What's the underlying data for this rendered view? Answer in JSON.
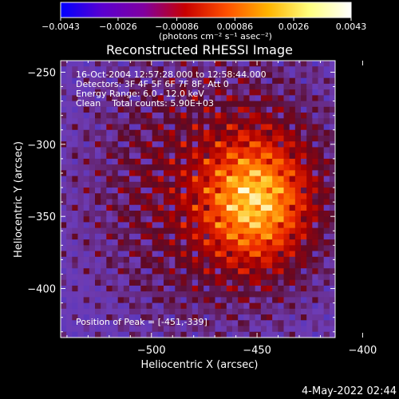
{
  "chart_data": {
    "type": "heatmap",
    "title": "Reconstructed RHESSI Image",
    "xlabel": "Heliocentric X (arcsec)",
    "ylabel": "Heliocentric Y (arcsec)",
    "xlim": [
      -543,
      -413
    ],
    "ylim": [
      -434,
      -242
    ],
    "xticks": [
      -500,
      -450,
      -400
    ],
    "xtick_labels": [
      "−500",
      "−450",
      "−400"
    ],
    "yticks": [
      -250,
      -300,
      -350,
      -400
    ],
    "ytick_labels": [
      "−250",
      "−300",
      "−350",
      "−400"
    ],
    "colorbar": {
      "range": [
        -0.0043,
        0.0043
      ],
      "ticks": [
        -0.0043,
        -0.0026,
        -0.00086,
        0.00086,
        0.0026,
        0.0043
      ],
      "tick_labels": [
        "−0.0043",
        "−0.0026",
        "−0.00086",
        "0.00086",
        "0.0026",
        "0.0043"
      ],
      "unit_label": "(photons cm⁻² s⁻¹ asec⁻²)",
      "colors": [
        "#0000ff",
        "#5a00d0",
        "#8000a0",
        "#c80000",
        "#ff5000",
        "#ffb400",
        "#ffff80",
        "#ffffff"
      ]
    },
    "annotations": {
      "line1": "16-Oct-2004 12:57:28.000 to 12:58:44.000",
      "line2": "Detectors: 3F 4F 5F 6F 7F 8F, Att 0",
      "line3": "Energy Range: 6.0 - 12.0 keV",
      "line4": "Clean    Total counts: 5.90E+03",
      "peak": "Position of Peak = [-451,-339]"
    },
    "peak": [
      -451,
      -339
    ],
    "timestamp": "4-May-2022 02:44"
  }
}
